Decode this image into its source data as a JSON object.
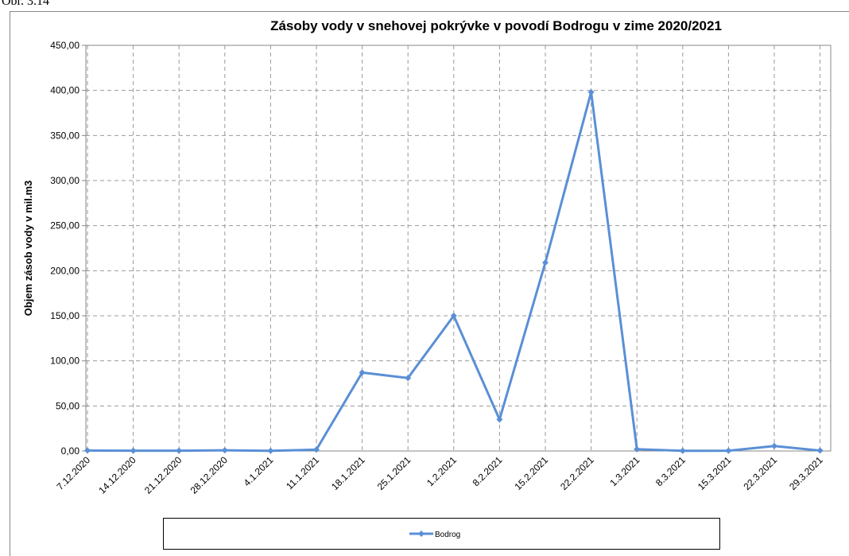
{
  "caption": "Obr. 3.14",
  "chart_data": {
    "type": "line",
    "title": "Zásoby vody v snehovej pokrývke v povodí Bodrogu v zime 2020/2021",
    "y_label": "Objem zásob vody v mil.m3",
    "categories": [
      "7.12.2020",
      "14.12.2020",
      "21.12.2020",
      "28.12.2020",
      "4.1.2021",
      "11.1.2021",
      "18.1.2021",
      "25.1.2021",
      "1.2.2021",
      "8.2.2021",
      "15.2.2021",
      "22.2.2021",
      "1.3.2021",
      "8.3.2021",
      "15.3.2021",
      "22.3.2021",
      "29.3.2021"
    ],
    "series": [
      {
        "name": "Bodrog",
        "color": "#5a8fd6",
        "values": [
          0.5,
          0.3,
          0.3,
          0.8,
          0.2,
          1.5,
          87,
          81,
          150,
          35,
          209,
          398,
          2,
          0.2,
          0.3,
          5.5,
          0.5
        ]
      }
    ],
    "ylim": [
      0,
      450
    ],
    "yticks": [
      {
        "value": 0,
        "label": "0,00"
      },
      {
        "value": 50,
        "label": "50,00"
      },
      {
        "value": 100,
        "label": "100,00"
      },
      {
        "value": 150,
        "label": "150,00"
      },
      {
        "value": 200,
        "label": "200,00"
      },
      {
        "value": 250,
        "label": "250,00"
      },
      {
        "value": 300,
        "label": "300,00"
      },
      {
        "value": 350,
        "label": "350,00"
      },
      {
        "value": 400,
        "label": "400,00"
      },
      {
        "value": 450,
        "label": "450,00"
      }
    ],
    "grid": true,
    "legend": "bottom"
  }
}
